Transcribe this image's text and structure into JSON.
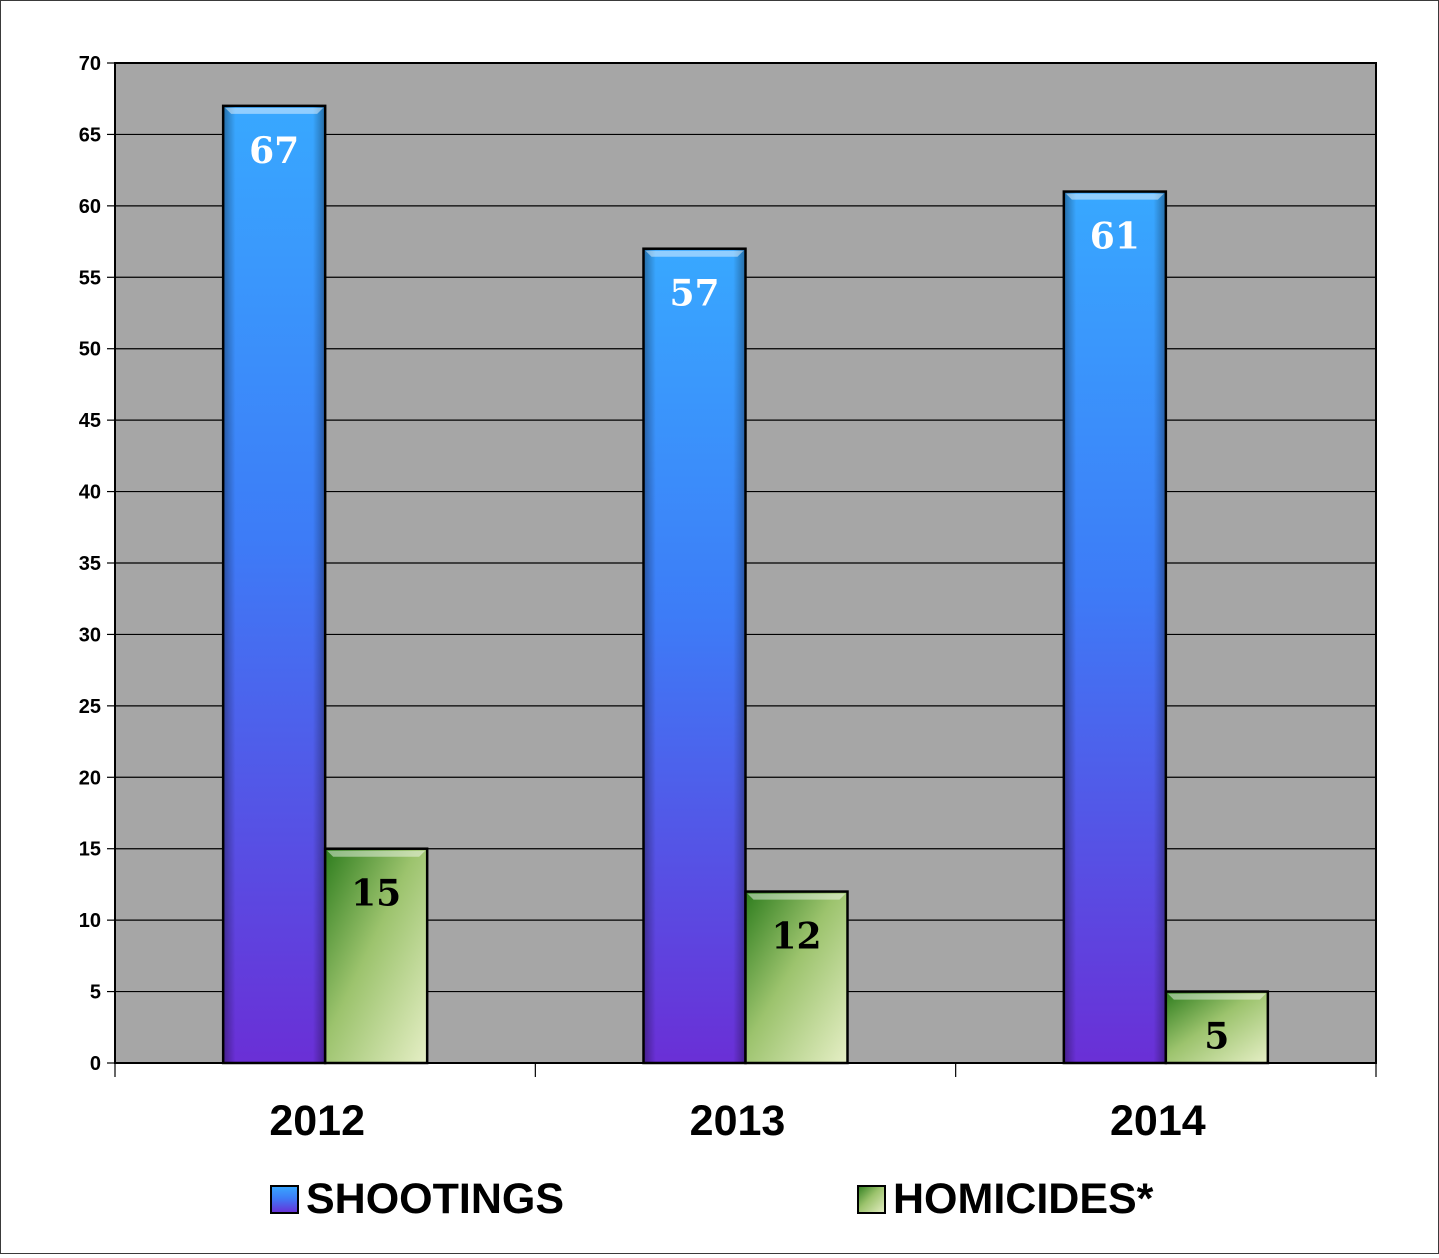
{
  "chart_data": {
    "type": "bar",
    "categories": [
      "2012",
      "2013",
      "2014"
    ],
    "series": [
      {
        "name": "SHOOTINGS",
        "values": [
          67,
          57,
          61
        ],
        "color": "#3b7bff"
      },
      {
        "name": "HOMICIDES*",
        "values": [
          15,
          12,
          5
        ],
        "color": "#8fc060"
      }
    ],
    "ylim": [
      0,
      70
    ],
    "yticks": [
      0,
      5,
      10,
      15,
      20,
      25,
      30,
      35,
      40,
      45,
      50,
      55,
      60,
      65,
      70
    ],
    "grid": true,
    "plot_background": "#a6a6a6",
    "legend_position": "bottom"
  }
}
